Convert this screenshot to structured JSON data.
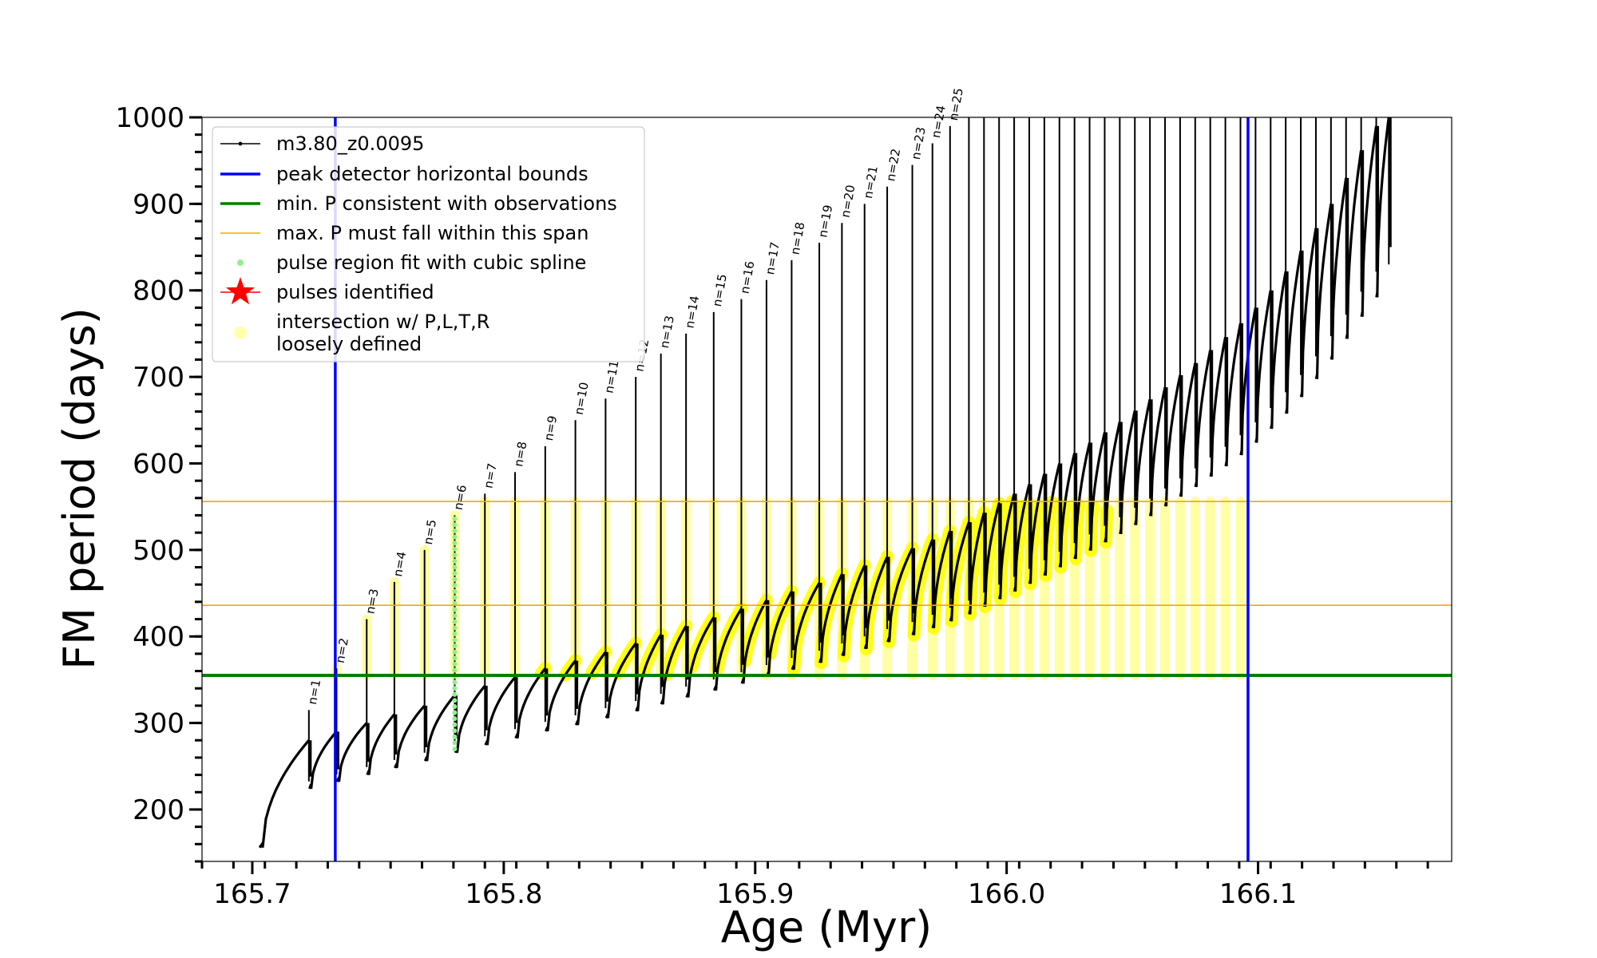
{
  "chart_data": {
    "type": "line",
    "xlabel": "Age (Myr)",
    "ylabel": "FM period (days)",
    "xlim": [
      165.68,
      166.177
    ],
    "ylim": [
      140,
      1000
    ],
    "xticks": [
      {
        "value": 165.7,
        "label": "165.7"
      },
      {
        "value": 165.8,
        "label": "165.8"
      },
      {
        "value": 165.9,
        "label": "165.9"
      },
      {
        "value": 166.0,
        "label": "166.0"
      },
      {
        "value": 166.1,
        "label": "166.1"
      }
    ],
    "yticks": [
      {
        "value": 200,
        "label": "200"
      },
      {
        "value": 300,
        "label": "300"
      },
      {
        "value": 400,
        "label": "400"
      },
      {
        "value": 500,
        "label": "500"
      },
      {
        "value": 600,
        "label": "600"
      },
      {
        "value": 700,
        "label": "700"
      },
      {
        "value": 800,
        "label": "800"
      },
      {
        "value": 900,
        "label": "900"
      },
      {
        "value": 1000,
        "label": "1000"
      }
    ],
    "legend_position": "upper-left",
    "legend": [
      {
        "label": "m3.80_z0.0095",
        "marker": "line-dot",
        "color": "#000000"
      },
      {
        "label": "peak detector horizontal bounds",
        "marker": "line",
        "color": "#0000ff"
      },
      {
        "label": "min. P consistent with observations",
        "marker": "line",
        "color": "#008000"
      },
      {
        "label": "max. P must fall within this span",
        "marker": "thin-line",
        "color": "#ffa500"
      },
      {
        "label": "pulse region fit with cubic spline",
        "marker": "dot",
        "color": "#90ee90"
      },
      {
        "label": "pulses identified",
        "marker": "star",
        "color": "#ff0000"
      },
      {
        "label": "intersection w/ P,L,T,R",
        "label2": "loosely defined",
        "marker": "circle",
        "color": "#ffff99"
      }
    ],
    "vertical_lines": [
      {
        "x": 165.733,
        "color": "#0000ff"
      },
      {
        "x": 166.096,
        "color": "#0000ff"
      }
    ],
    "horizontal_lines": [
      {
        "y": 355,
        "color": "#008000"
      },
      {
        "y": 436,
        "color": "#ffa500"
      },
      {
        "y": 556,
        "color": "#ffa500"
      }
    ],
    "pulses": [
      {
        "label": "n=1",
        "age": 165.7225,
        "peak": 315,
        "base": 280
      },
      {
        "label": "n=2",
        "age": 165.7335,
        "peak": 363,
        "base": 290
      },
      {
        "label": "n=3",
        "age": 165.7455,
        "peak": 420,
        "base": 300
      },
      {
        "label": "n=4",
        "age": 165.7565,
        "peak": 463,
        "base": 310
      },
      {
        "label": "n=5",
        "age": 165.7685,
        "peak": 500,
        "base": 320
      },
      {
        "label": "n=6",
        "age": 165.7805,
        "peak": 540,
        "base": 332
      },
      {
        "label": "n=7",
        "age": 165.7925,
        "peak": 565,
        "base": 343
      },
      {
        "label": "n=8",
        "age": 165.8045,
        "peak": 590,
        "base": 353
      },
      {
        "label": "n=9",
        "age": 165.8165,
        "peak": 620,
        "base": 363
      },
      {
        "label": "n=10",
        "age": 165.8285,
        "peak": 650,
        "base": 372
      },
      {
        "label": "n=11",
        "age": 165.8405,
        "peak": 675,
        "base": 382
      },
      {
        "label": "n=12",
        "age": 165.8525,
        "peak": 700,
        "base": 392
      },
      {
        "label": "n=13",
        "age": 165.8625,
        "peak": 727,
        "base": 402
      },
      {
        "label": "n=14",
        "age": 165.8725,
        "peak": 750,
        "base": 412
      },
      {
        "label": "n=15",
        "age": 165.8835,
        "peak": 775,
        "base": 422
      },
      {
        "label": "n=16",
        "age": 165.8945,
        "peak": 790,
        "base": 432
      },
      {
        "label": "n=17",
        "age": 165.9045,
        "peak": 812,
        "base": 442
      },
      {
        "label": "n=18",
        "age": 165.9145,
        "peak": 835,
        "base": 452
      },
      {
        "label": "n=19",
        "age": 165.9255,
        "peak": 855,
        "base": 462
      },
      {
        "label": "n=20",
        "age": 165.9345,
        "peak": 878,
        "base": 472
      },
      {
        "label": "n=21",
        "age": 165.9435,
        "peak": 900,
        "base": 482
      },
      {
        "label": "n=22",
        "age": 165.9525,
        "peak": 920,
        "base": 492
      },
      {
        "label": "n=23",
        "age": 165.9625,
        "peak": 945,
        "base": 502
      },
      {
        "label": "n=24",
        "age": 165.9705,
        "peak": 970,
        "base": 512
      },
      {
        "label": "n=25",
        "age": 165.9775,
        "peak": 990,
        "base": 522
      }
    ],
    "later_pulses": [
      {
        "age": 165.985,
        "base": 532
      },
      {
        "age": 165.991,
        "base": 543
      },
      {
        "age": 165.997,
        "base": 554
      },
      {
        "age": 166.003,
        "base": 565
      },
      {
        "age": 166.009,
        "base": 576
      },
      {
        "age": 166.015,
        "base": 588
      },
      {
        "age": 166.021,
        "base": 600
      },
      {
        "age": 166.027,
        "base": 612
      },
      {
        "age": 166.033,
        "base": 624
      },
      {
        "age": 166.039,
        "base": 636
      },
      {
        "age": 166.045,
        "base": 648
      },
      {
        "age": 166.051,
        "base": 661
      },
      {
        "age": 166.057,
        "base": 674
      },
      {
        "age": 166.063,
        "base": 688
      },
      {
        "age": 166.069,
        "base": 702
      },
      {
        "age": 166.075,
        "base": 716
      },
      {
        "age": 166.081,
        "base": 731
      },
      {
        "age": 166.087,
        "base": 746
      },
      {
        "age": 166.093,
        "base": 762
      },
      {
        "age": 166.099,
        "base": 780
      },
      {
        "age": 166.105,
        "base": 800
      },
      {
        "age": 166.111,
        "base": 822
      },
      {
        "age": 166.117,
        "base": 846
      },
      {
        "age": 166.123,
        "base": 872
      },
      {
        "age": 166.129,
        "base": 900
      },
      {
        "age": 166.135,
        "base": 930
      },
      {
        "age": 166.141,
        "base": 962
      },
      {
        "age": 166.147,
        "base": 990
      },
      {
        "age": 166.152,
        "base": 1000
      }
    ]
  }
}
